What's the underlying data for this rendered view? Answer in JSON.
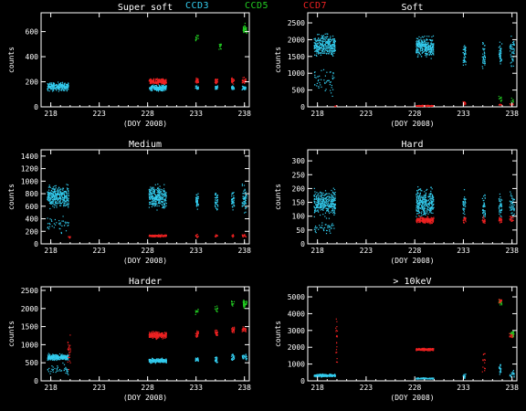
{
  "legend": [
    {
      "name": "CCD3",
      "color": "#33ccee"
    },
    {
      "name": "CCD5",
      "color": "#22cc22"
    },
    {
      "name": "CCD7",
      "color": "#ee2222"
    }
  ],
  "chart_data": [
    {
      "type": "scatter",
      "title": "Super soft",
      "xlabel": "(DOY 2008)",
      "ylabel": "counts",
      "xlim": [
        217,
        238.5
      ],
      "ylim": [
        0,
        750
      ],
      "xticks": [
        "218",
        "223",
        "228",
        "233",
        "238"
      ],
      "yticks": [
        "0",
        "200",
        "400",
        "600"
      ],
      "ytick_values": [
        0,
        200,
        400,
        600
      ],
      "clusters": [
        {
          "series": "CCD3",
          "x": [
            217.6,
            219.8
          ],
          "y": [
            120,
            210
          ],
          "n": 260
        },
        {
          "series": "CCD3",
          "x": [
            228.1,
            229.9
          ],
          "y": [
            125,
            185
          ],
          "n": 200
        },
        {
          "series": "CCD7",
          "x": [
            228.1,
            229.9
          ],
          "y": [
            175,
            235
          ],
          "n": 200
        },
        {
          "series": "CCD3",
          "x": [
            232.9,
            233.2
          ],
          "y": [
            130,
            180
          ],
          "n": 25
        },
        {
          "series": "CCD7",
          "x": [
            232.9,
            233.2
          ],
          "y": [
            175,
            245
          ],
          "n": 25
        },
        {
          "series": "CCD5",
          "x": [
            232.9,
            233.2
          ],
          "y": [
            500,
            620
          ],
          "n": 10
        },
        {
          "series": "CCD3",
          "x": [
            234.9,
            235.2
          ],
          "y": [
            130,
            180
          ],
          "n": 25
        },
        {
          "series": "CCD7",
          "x": [
            234.9,
            235.2
          ],
          "y": [
            175,
            245
          ],
          "n": 25
        },
        {
          "series": "CCD5",
          "x": [
            235.3,
            235.6
          ],
          "y": [
            450,
            520
          ],
          "n": 12
        },
        {
          "series": "CCD3",
          "x": [
            236.6,
            236.9
          ],
          "y": [
            130,
            180
          ],
          "n": 25
        },
        {
          "series": "CCD7",
          "x": [
            236.6,
            236.9
          ],
          "y": [
            175,
            245
          ],
          "n": 25
        },
        {
          "series": "CCD3",
          "x": [
            237.7,
            238.1
          ],
          "y": [
            130,
            180
          ],
          "n": 30
        },
        {
          "series": "CCD7",
          "x": [
            237.7,
            238.1
          ],
          "y": [
            175,
            245
          ],
          "n": 30
        },
        {
          "series": "CCD5",
          "x": [
            237.8,
            238.2
          ],
          "y": [
            560,
            680
          ],
          "n": 40
        }
      ]
    },
    {
      "type": "scatter",
      "title": "Soft",
      "xlabel": "(DOY 2008)",
      "ylabel": "counts",
      "xlim": [
        217,
        238.5
      ],
      "ylim": [
        0,
        2800
      ],
      "xticks": [
        "218",
        "223",
        "228",
        "233",
        "238"
      ],
      "yticks": [
        "0",
        "500",
        "1000",
        "1500",
        "2000",
        "2500"
      ],
      "ytick_values": [
        0,
        500,
        1000,
        1500,
        2000,
        2500
      ],
      "clusters": [
        {
          "series": "CCD3",
          "x": [
            217.6,
            219.8
          ],
          "y": [
            1400,
            2300
          ],
          "n": 320
        },
        {
          "series": "CCD3",
          "x": [
            217.6,
            219.8
          ],
          "y": [
            200,
            1400
          ],
          "n": 50
        },
        {
          "series": "CCD7",
          "x": [
            219.7,
            220.0
          ],
          "y": [
            10,
            60
          ],
          "n": 8
        },
        {
          "series": "CCD3",
          "x": [
            228.1,
            229.9
          ],
          "y": [
            1400,
            2200
          ],
          "n": 300
        },
        {
          "series": "CCD7",
          "x": [
            228.1,
            229.9
          ],
          "y": [
            20,
            70
          ],
          "n": 120
        },
        {
          "series": "CCD3",
          "x": [
            232.9,
            233.2
          ],
          "y": [
            1000,
            2100
          ],
          "n": 40
        },
        {
          "series": "CCD7",
          "x": [
            232.9,
            233.2
          ],
          "y": [
            60,
            200
          ],
          "n": 15
        },
        {
          "series": "CCD3",
          "x": [
            234.9,
            235.2
          ],
          "y": [
            1000,
            2100
          ],
          "n": 40
        },
        {
          "series": "CCD3",
          "x": [
            236.6,
            236.9
          ],
          "y": [
            1000,
            2100
          ],
          "n": 40
        },
        {
          "series": "CCD5",
          "x": [
            236.6,
            236.9
          ],
          "y": [
            150,
            350
          ],
          "n": 10
        },
        {
          "series": "CCD7",
          "x": [
            236.6,
            236.9
          ],
          "y": [
            40,
            120
          ],
          "n": 10
        },
        {
          "series": "CCD3",
          "x": [
            237.7,
            238.2
          ],
          "y": [
            1000,
            2200
          ],
          "n": 50
        },
        {
          "series": "CCD7",
          "x": [
            237.7,
            238.1
          ],
          "y": [
            40,
            150
          ],
          "n": 12
        },
        {
          "series": "CCD5",
          "x": [
            237.8,
            238.2
          ],
          "y": [
            100,
            300
          ],
          "n": 8
        }
      ]
    },
    {
      "type": "scatter",
      "title": "Medium",
      "xlabel": "(DOY 2008)",
      "ylabel": "counts",
      "xlim": [
        217,
        238.5
      ],
      "ylim": [
        0,
        1500
      ],
      "xticks": [
        "218",
        "223",
        "228",
        "233",
        "238"
      ],
      "yticks": [
        "0",
        "200",
        "400",
        "600",
        "800",
        "1000",
        "1200",
        "1400"
      ],
      "ytick_values": [
        0,
        200,
        400,
        600,
        800,
        1000,
        1200,
        1400
      ],
      "clusters": [
        {
          "series": "CCD3",
          "x": [
            217.6,
            219.8
          ],
          "y": [
            520,
            1000
          ],
          "n": 320
        },
        {
          "series": "CCD3",
          "x": [
            217.6,
            219.8
          ],
          "y": [
            150,
            520
          ],
          "n": 40
        },
        {
          "series": "CCD7",
          "x": [
            219.7,
            220.0
          ],
          "y": [
            80,
            140
          ],
          "n": 8
        },
        {
          "series": "CCD3",
          "x": [
            228.1,
            229.9
          ],
          "y": [
            500,
            1000
          ],
          "n": 280
        },
        {
          "series": "CCD7",
          "x": [
            228.1,
            229.9
          ],
          "y": [
            110,
            160
          ],
          "n": 150
        },
        {
          "series": "CCD3",
          "x": [
            232.9,
            233.2
          ],
          "y": [
            500,
            900
          ],
          "n": 40
        },
        {
          "series": "CCD7",
          "x": [
            232.9,
            233.2
          ],
          "y": [
            100,
            170
          ],
          "n": 12
        },
        {
          "series": "CCD3",
          "x": [
            234.9,
            235.2
          ],
          "y": [
            500,
            900
          ],
          "n": 40
        },
        {
          "series": "CCD7",
          "x": [
            234.9,
            235.2
          ],
          "y": [
            100,
            170
          ],
          "n": 12
        },
        {
          "series": "CCD3",
          "x": [
            236.6,
            236.9
          ],
          "y": [
            500,
            900
          ],
          "n": 40
        },
        {
          "series": "CCD7",
          "x": [
            236.6,
            236.9
          ],
          "y": [
            100,
            170
          ],
          "n": 12
        },
        {
          "series": "CCD3",
          "x": [
            237.7,
            238.2
          ],
          "y": [
            450,
            1000
          ],
          "n": 60
        },
        {
          "series": "CCD7",
          "x": [
            237.7,
            238.1
          ],
          "y": [
            100,
            180
          ],
          "n": 15
        }
      ]
    },
    {
      "type": "scatter",
      "title": "Hard",
      "xlabel": "(DOY 2008)",
      "ylabel": "counts",
      "xlim": [
        217,
        238.5
      ],
      "ylim": [
        0,
        340
      ],
      "xticks": [
        "218",
        "223",
        "228",
        "233",
        "238"
      ],
      "yticks": [
        "0",
        "50",
        "100",
        "150",
        "200",
        "250",
        "300"
      ],
      "ytick_values": [
        0,
        50,
        100,
        150,
        200,
        250,
        300
      ],
      "clusters": [
        {
          "series": "CCD3",
          "x": [
            217.6,
            219.8
          ],
          "y": [
            90,
            210
          ],
          "n": 320
        },
        {
          "series": "CCD3",
          "x": [
            217.6,
            219.8
          ],
          "y": [
            30,
            90
          ],
          "n": 40
        },
        {
          "series": "CCD3",
          "x": [
            228.1,
            229.9
          ],
          "y": [
            80,
            220
          ],
          "n": 300
        },
        {
          "series": "CCD7",
          "x": [
            228.1,
            229.9
          ],
          "y": [
            70,
            105
          ],
          "n": 200
        },
        {
          "series": "CCD3",
          "x": [
            232.9,
            233.2
          ],
          "y": [
            80,
            200
          ],
          "n": 40
        },
        {
          "series": "CCD7",
          "x": [
            232.9,
            233.2
          ],
          "y": [
            70,
            105
          ],
          "n": 20
        },
        {
          "series": "CCD3",
          "x": [
            234.9,
            235.2
          ],
          "y": [
            80,
            200
          ],
          "n": 40
        },
        {
          "series": "CCD7",
          "x": [
            234.9,
            235.2
          ],
          "y": [
            70,
            105
          ],
          "n": 20
        },
        {
          "series": "CCD3",
          "x": [
            236.6,
            236.9
          ],
          "y": [
            80,
            200
          ],
          "n": 40
        },
        {
          "series": "CCD7",
          "x": [
            236.6,
            236.9
          ],
          "y": [
            70,
            110
          ],
          "n": 20
        },
        {
          "series": "CCD3",
          "x": [
            237.7,
            238.2
          ],
          "y": [
            80,
            210
          ],
          "n": 50
        },
        {
          "series": "CCD7",
          "x": [
            237.7,
            238.1
          ],
          "y": [
            70,
            110
          ],
          "n": 20
        }
      ]
    },
    {
      "type": "scatter",
      "title": "Harder",
      "xlabel": "(DOY 2008)",
      "ylabel": "counts",
      "xlim": [
        217,
        238.5
      ],
      "ylim": [
        0,
        2600
      ],
      "xticks": [
        "218",
        "223",
        "228",
        "233",
        "238"
      ],
      "yticks": [
        "0",
        "500",
        "1000",
        "1500",
        "2000",
        "2500"
      ],
      "ytick_values": [
        0,
        500,
        1000,
        1500,
        2000,
        2500
      ],
      "clusters": [
        {
          "series": "CCD3",
          "x": [
            217.6,
            219.8
          ],
          "y": [
            560,
            780
          ],
          "n": 260
        },
        {
          "series": "CCD3",
          "x": [
            217.6,
            219.8
          ],
          "y": [
            100,
            560
          ],
          "n": 40
        },
        {
          "series": "CCD7",
          "x": [
            219.7,
            220.0
          ],
          "y": [
            200,
            1600
          ],
          "n": 25
        },
        {
          "series": "CCD3",
          "x": [
            228.1,
            229.9
          ],
          "y": [
            480,
            650
          ],
          "n": 200
        },
        {
          "series": "CCD7",
          "x": [
            228.1,
            229.9
          ],
          "y": [
            1150,
            1400
          ],
          "n": 220
        },
        {
          "series": "CCD3",
          "x": [
            232.9,
            233.2
          ],
          "y": [
            480,
            700
          ],
          "n": 25
        },
        {
          "series": "CCD7",
          "x": [
            232.9,
            233.2
          ],
          "y": [
            1150,
            1450
          ],
          "n": 25
        },
        {
          "series": "CCD5",
          "x": [
            232.9,
            233.2
          ],
          "y": [
            1800,
            2100
          ],
          "n": 10
        },
        {
          "series": "CCD3",
          "x": [
            234.9,
            235.2
          ],
          "y": [
            500,
            700
          ],
          "n": 25
        },
        {
          "series": "CCD7",
          "x": [
            234.9,
            235.2
          ],
          "y": [
            1200,
            1450
          ],
          "n": 25
        },
        {
          "series": "CCD5",
          "x": [
            234.9,
            235.2
          ],
          "y": [
            1850,
            2150
          ],
          "n": 12
        },
        {
          "series": "CCD3",
          "x": [
            236.6,
            236.9
          ],
          "y": [
            550,
            800
          ],
          "n": 25
        },
        {
          "series": "CCD7",
          "x": [
            236.6,
            236.9
          ],
          "y": [
            1300,
            1550
          ],
          "n": 25
        },
        {
          "series": "CCD5",
          "x": [
            236.6,
            236.9
          ],
          "y": [
            2000,
            2300
          ],
          "n": 12
        },
        {
          "series": "CCD3",
          "x": [
            237.7,
            238.2
          ],
          "y": [
            550,
            800
          ],
          "n": 30
        },
        {
          "series": "CCD7",
          "x": [
            237.7,
            238.1
          ],
          "y": [
            1300,
            1550
          ],
          "n": 30
        },
        {
          "series": "CCD5",
          "x": [
            237.8,
            238.2
          ],
          "y": [
            1950,
            2350
          ],
          "n": 45
        }
      ]
    },
    {
      "type": "scatter",
      "title": "> 10keV",
      "xlabel": "(DOY 2008)",
      "ylabel": "counts",
      "xlim": [
        217,
        238.5
      ],
      "ylim": [
        0,
        5600
      ],
      "xticks": [
        "218",
        "223",
        "228",
        "233",
        "238"
      ],
      "yticks": [
        "0",
        "1000",
        "2000",
        "3000",
        "4000",
        "5000"
      ],
      "ytick_values": [
        0,
        1000,
        2000,
        3000,
        4000,
        5000
      ],
      "clusters": [
        {
          "series": "CCD3",
          "x": [
            217.6,
            219.8
          ],
          "y": [
            250,
            450
          ],
          "n": 220
        },
        {
          "series": "CCD7",
          "x": [
            219.8,
            220.0
          ],
          "y": [
            200,
            4800
          ],
          "n": 22
        },
        {
          "series": "CCD7",
          "x": [
            228.1,
            229.9
          ],
          "y": [
            1800,
            2000
          ],
          "n": 200
        },
        {
          "series": "CCD3",
          "x": [
            228.1,
            229.9
          ],
          "y": [
            120,
            220
          ],
          "n": 150
        },
        {
          "series": "CCD3",
          "x": [
            232.9,
            233.2
          ],
          "y": [
            100,
            500
          ],
          "n": 20
        },
        {
          "series": "CCD7",
          "x": [
            234.9,
            235.2
          ],
          "y": [
            100,
            2000
          ],
          "n": 15
        },
        {
          "series": "CCD5",
          "x": [
            236.6,
            236.9
          ],
          "y": [
            4400,
            5000
          ],
          "n": 15
        },
        {
          "series": "CCD7",
          "x": [
            236.6,
            236.9
          ],
          "y": [
            4600,
            5000
          ],
          "n": 20
        },
        {
          "series": "CCD3",
          "x": [
            236.6,
            236.9
          ],
          "y": [
            100,
            1200
          ],
          "n": 20
        },
        {
          "series": "CCD7",
          "x": [
            237.7,
            238.1
          ],
          "y": [
            2500,
            3000
          ],
          "n": 30
        },
        {
          "series": "CCD5",
          "x": [
            237.8,
            238.2
          ],
          "y": [
            2600,
            3100
          ],
          "n": 20
        },
        {
          "series": "CCD3",
          "x": [
            237.7,
            238.2
          ],
          "y": [
            150,
            700
          ],
          "n": 20
        }
      ]
    }
  ]
}
